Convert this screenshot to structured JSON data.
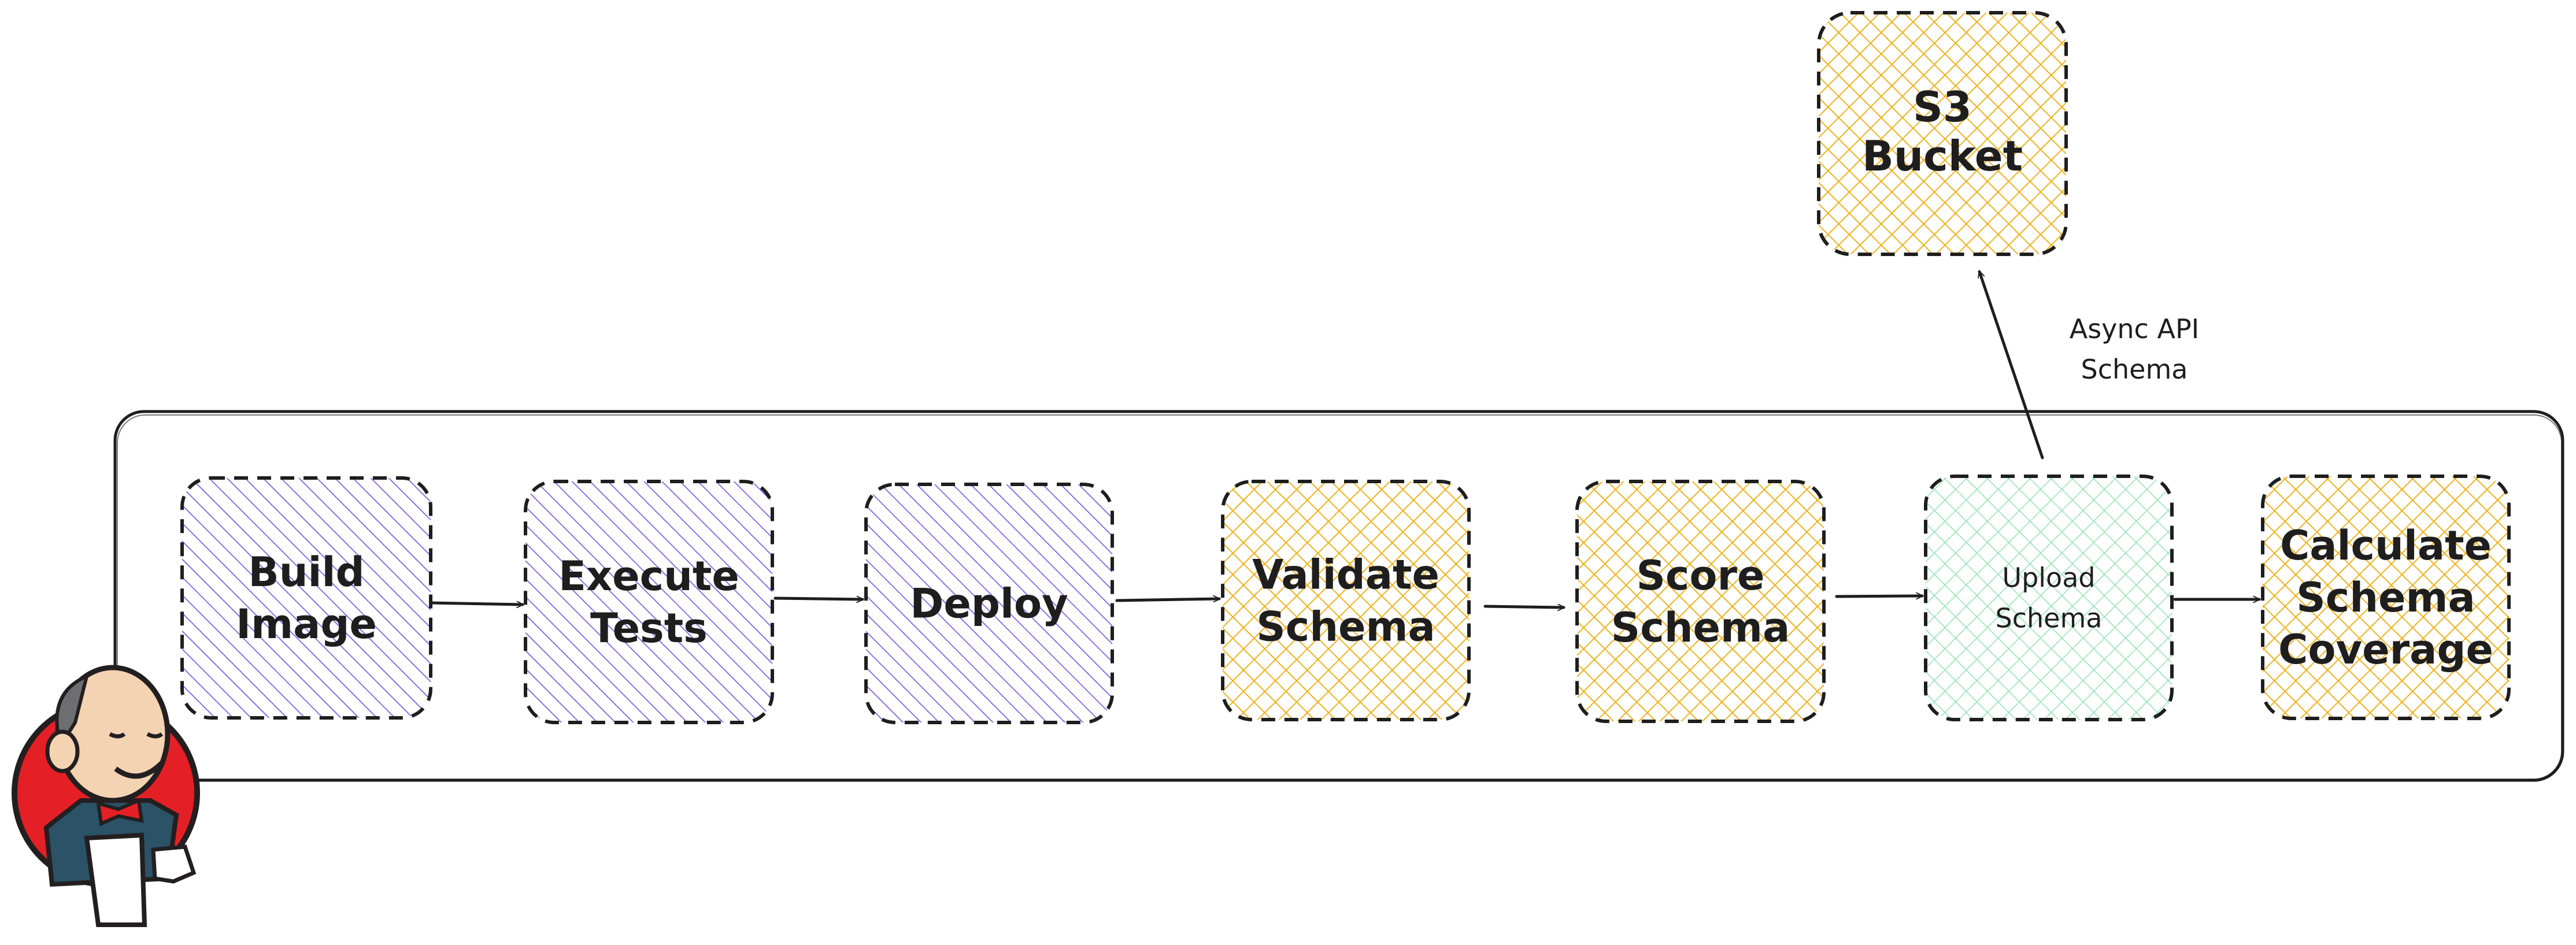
{
  "colors": {
    "purple_hatch": "#6c47ff",
    "orange_hatch": "#f5a800",
    "green_hatch": "#7ee0a3",
    "stroke": "#1e1e1e"
  },
  "logo": {
    "name": "jenkins-logo",
    "icon": "jenkins-butler-icon"
  },
  "pipeline": {
    "stages": [
      {
        "id": "build-image",
        "lines": [
          "Build",
          "Image"
        ],
        "fill": "purple"
      },
      {
        "id": "execute-tests",
        "lines": [
          "Execute",
          "Tests"
        ],
        "fill": "purple"
      },
      {
        "id": "deploy",
        "lines": [
          "Deploy"
        ],
        "fill": "purple"
      },
      {
        "id": "validate-schema",
        "lines": [
          "Validate",
          "Schema"
        ],
        "fill": "orange"
      },
      {
        "id": "score-schema",
        "lines": [
          "Score",
          "Schema"
        ],
        "fill": "orange"
      },
      {
        "id": "upload-schema",
        "lines": [
          "Upload",
          "Schema"
        ],
        "fill": "green"
      },
      {
        "id": "calculate-schema-coverage",
        "lines": [
          "Calculate",
          "Schema",
          "Coverage"
        ],
        "fill": "orange"
      }
    ]
  },
  "storage": {
    "id": "s3-bucket",
    "lines": [
      "S3",
      "Bucket"
    ],
    "fill": "orange"
  },
  "upload_edge": {
    "label_lines": [
      "Async API",
      "Schema"
    ]
  }
}
